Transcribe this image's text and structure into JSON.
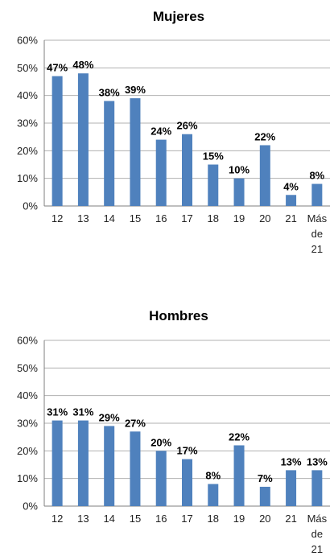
{
  "chart_data": [
    {
      "type": "bar",
      "title": "Mujeres",
      "categories": [
        "12",
        "13",
        "14",
        "15",
        "16",
        "17",
        "18",
        "19",
        "20",
        "21",
        "Más de 21"
      ],
      "values": [
        47,
        48,
        38,
        39,
        24,
        26,
        15,
        10,
        22,
        4,
        8
      ],
      "data_labels": [
        "47%",
        "48%",
        "38%",
        "39%",
        "24%",
        "26%",
        "15%",
        "10%",
        "22%",
        "4%",
        "8%"
      ],
      "yticks": [
        "0%",
        "10%",
        "20%",
        "30%",
        "40%",
        "50%",
        "60%"
      ],
      "ylim": [
        0,
        60
      ],
      "ylabel": "",
      "xlabel": "",
      "grid": true,
      "color": "#4f81bd"
    },
    {
      "type": "bar",
      "title": "Hombres",
      "categories": [
        "12",
        "13",
        "14",
        "15",
        "16",
        "17",
        "18",
        "19",
        "20",
        "21",
        "Más de 21"
      ],
      "values": [
        31,
        31,
        29,
        27,
        20,
        17,
        8,
        22,
        7,
        13,
        13
      ],
      "data_labels": [
        "31%",
        "31%",
        "29%",
        "27%",
        "20%",
        "17%",
        "8%",
        "22%",
        "7%",
        "13%",
        "13%"
      ],
      "yticks": [
        "0%",
        "10%",
        "20%",
        "30%",
        "40%",
        "50%",
        "60%"
      ],
      "ylim": [
        0,
        60
      ],
      "ylabel": "",
      "xlabel": "",
      "grid": true,
      "color": "#4f81bd"
    }
  ]
}
